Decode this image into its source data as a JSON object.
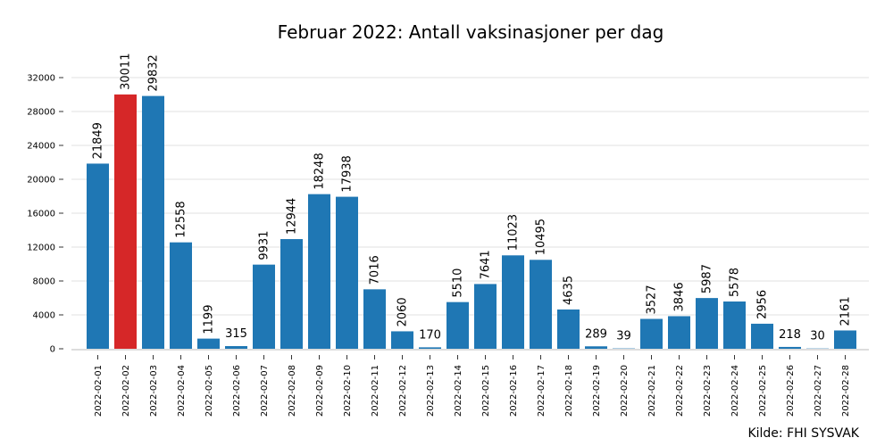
{
  "chart_data": {
    "type": "bar",
    "title": "Februar 2022: Antall vaksinasjoner per dag",
    "xlabel": "",
    "ylabel": "",
    "categories": [
      "2022-02-01",
      "2022-02-02",
      "2022-02-03",
      "2022-02-04",
      "2022-02-05",
      "2022-02-06",
      "2022-02-07",
      "2022-02-08",
      "2022-02-09",
      "2022-02-10",
      "2022-02-11",
      "2022-02-12",
      "2022-02-13",
      "2022-02-14",
      "2022-02-15",
      "2022-02-16",
      "2022-02-17",
      "2022-02-18",
      "2022-02-19",
      "2022-02-20",
      "2022-02-21",
      "2022-02-22",
      "2022-02-23",
      "2022-02-24",
      "2022-02-25",
      "2022-02-26",
      "2022-02-27",
      "2022-02-28"
    ],
    "values": [
      21849,
      30011,
      29832,
      12558,
      1199,
      315,
      9931,
      12944,
      18248,
      17938,
      7016,
      2060,
      170,
      5510,
      7641,
      11023,
      10495,
      4635,
      289,
      39,
      3527,
      3846,
      5987,
      5578,
      2956,
      218,
      30,
      2161
    ],
    "ylim": [
      0,
      34000
    ],
    "yticks": [
      0,
      4000,
      8000,
      12000,
      16000,
      20000,
      24000,
      28000,
      32000
    ],
    "grid": true,
    "highlight_index": 1,
    "colors": {
      "bar": "#1f77b4",
      "highlight": "#d62728",
      "grid": "#e6e6e6",
      "axis": "#dddddd"
    }
  },
  "source": "Kilde: FHI SYSVAK"
}
